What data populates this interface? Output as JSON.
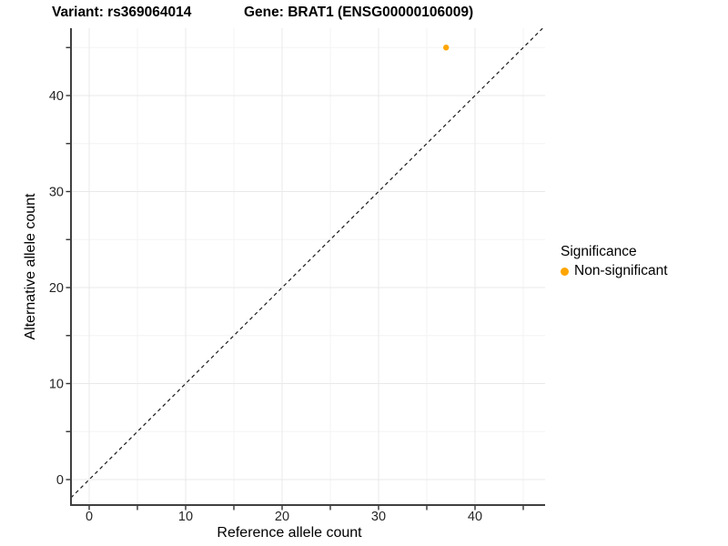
{
  "chart_data": {
    "type": "scatter",
    "title_left": "Variant: rs369064014",
    "title_right": "Gene: BRAT1 (ENSG00000106009)",
    "xlabel": "Reference allele count",
    "ylabel": "Alternative allele count",
    "xlim": [
      -1.9,
      47.3
    ],
    "ylim": [
      -2.75,
      47.0
    ],
    "x_major_ticks": [
      0,
      10,
      20,
      30,
      40
    ],
    "y_major_ticks": [
      0,
      10,
      20,
      30,
      40
    ],
    "x_minor_ticks": [
      5,
      15,
      25,
      35,
      45
    ],
    "y_minor_ticks": [
      5,
      15,
      25,
      35,
      45
    ],
    "grid": true,
    "points": [
      {
        "x": 37,
        "y": 45,
        "series": "Non-significant"
      }
    ],
    "reference_line": {
      "type": "identity",
      "equation": "y = x",
      "style": "dashed"
    },
    "legend": {
      "title": "Significance",
      "position": "right",
      "items": [
        {
          "label": "Non-significant",
          "color": "#FFA500"
        }
      ]
    },
    "colors": {
      "point": "#FFA500",
      "grid_major": "#E9E9E9",
      "grid_minor": "#F3F3F3",
      "axis_line": "#404040",
      "tick_mark": "#333333",
      "tick_label": "#262626",
      "reference_line": "#1A1A1A",
      "background": "#FFFFFF"
    }
  }
}
